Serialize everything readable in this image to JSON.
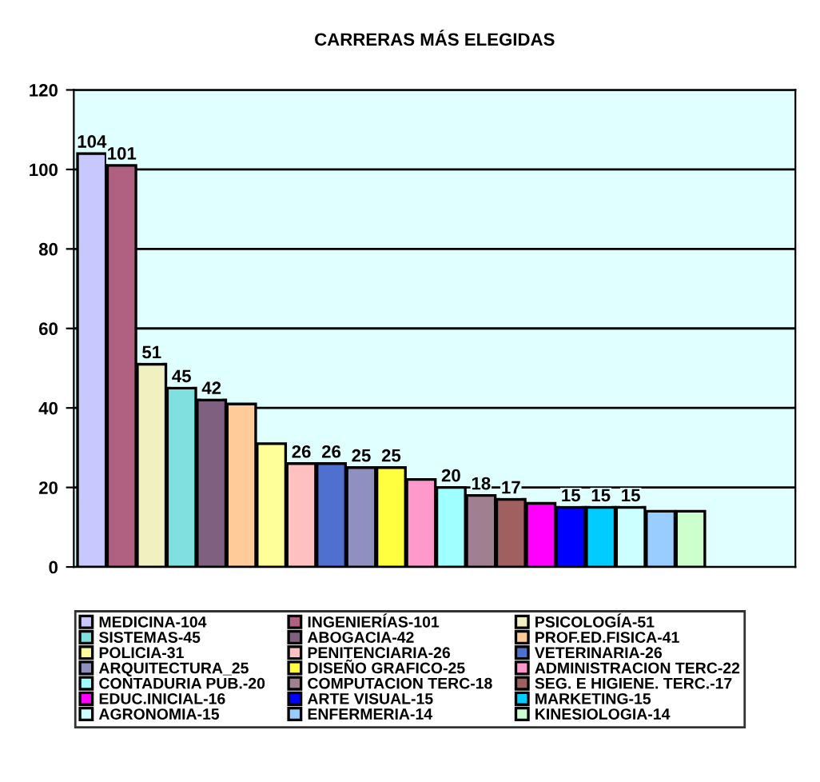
{
  "chart_data": {
    "type": "bar",
    "title": "CARRERAS MÁS ELEGIDAS",
    "categories": [
      null,
      null,
      null,
      null,
      null,
      null,
      null,
      null,
      null,
      null,
      null,
      null,
      null,
      null,
      null,
      null,
      null,
      null,
      null,
      null,
      null
    ],
    "series": [
      {
        "name": "MEDICINA-104",
        "color": "#c8c8ff",
        "values": [
          104,
          null,
          null,
          null,
          null,
          null,
          null,
          null,
          null,
          null,
          null,
          null,
          null,
          null,
          null,
          null,
          null,
          null,
          null,
          null,
          null
        ],
        "value_labels": [
          "104",
          null,
          null,
          null,
          null,
          null,
          null,
          null,
          null,
          null,
          null,
          null,
          null,
          null,
          null,
          null,
          null,
          null,
          null,
          null,
          null
        ]
      },
      {
        "name": "INGENIERÍAS-101",
        "color": "#b06080",
        "values": [
          null,
          101,
          null,
          null,
          null,
          null,
          null,
          null,
          null,
          null,
          null,
          null,
          null,
          null,
          null,
          null,
          null,
          null,
          null,
          null,
          null
        ],
        "value_labels": [
          null,
          "101",
          null,
          null,
          null,
          null,
          null,
          null,
          null,
          null,
          null,
          null,
          null,
          null,
          null,
          null,
          null,
          null,
          null,
          null,
          null
        ]
      },
      {
        "name": "PSICOLOGÍA-51",
        "color": "#f0f0c0",
        "values": [
          null,
          null,
          51,
          null,
          null,
          null,
          null,
          null,
          null,
          null,
          null,
          null,
          null,
          null,
          null,
          null,
          null,
          null,
          null,
          null,
          null
        ],
        "value_labels": [
          null,
          null,
          "51",
          null,
          null,
          null,
          null,
          null,
          null,
          null,
          null,
          null,
          null,
          null,
          null,
          null,
          null,
          null,
          null,
          null,
          null
        ]
      },
      {
        "name": "SISTEMAS-45",
        "color": "#80e0e0",
        "values": [
          null,
          null,
          null,
          45,
          null,
          null,
          null,
          null,
          null,
          null,
          null,
          null,
          null,
          null,
          null,
          null,
          null,
          null,
          null,
          null,
          null
        ],
        "value_labels": [
          null,
          null,
          null,
          "45",
          null,
          null,
          null,
          null,
          null,
          null,
          null,
          null,
          null,
          null,
          null,
          null,
          null,
          null,
          null,
          null,
          null
        ]
      },
      {
        "name": "ABOGACIA-42",
        "color": "#806080",
        "values": [
          null,
          null,
          null,
          null,
          42,
          null,
          null,
          null,
          null,
          null,
          null,
          null,
          null,
          null,
          null,
          null,
          null,
          null,
          null,
          null,
          null
        ],
        "value_labels": [
          null,
          null,
          null,
          null,
          "42",
          null,
          null,
          null,
          null,
          null,
          null,
          null,
          null,
          null,
          null,
          null,
          null,
          null,
          null,
          null,
          null
        ]
      },
      {
        "name": "PROF.ED.FISICA-41",
        "color": "#ffcc99",
        "values": [
          null,
          null,
          null,
          null,
          null,
          41,
          null,
          null,
          null,
          null,
          null,
          null,
          null,
          null,
          null,
          null,
          null,
          null,
          null,
          null,
          null
        ]
      },
      {
        "name": "POLICIA-31",
        "color": "#ffff99",
        "values": [
          null,
          null,
          null,
          null,
          null,
          null,
          31,
          null,
          null,
          null,
          null,
          null,
          null,
          null,
          null,
          null,
          null,
          null,
          null,
          null,
          null
        ]
      },
      {
        "name": "PENITENCIARIA-26",
        "color": "#ffc0c0",
        "values": [
          null,
          null,
          null,
          null,
          null,
          null,
          null,
          26,
          null,
          null,
          null,
          null,
          null,
          null,
          null,
          null,
          null,
          null,
          null,
          null,
          null
        ],
        "value_labels": [
          null,
          null,
          null,
          null,
          null,
          null,
          null,
          "26",
          null,
          null,
          null,
          null,
          null,
          null,
          null,
          null,
          null,
          null,
          null,
          null,
          null
        ]
      },
      {
        "name": "VETERINARIA-26",
        "color": "#5070d0",
        "values": [
          null,
          null,
          null,
          null,
          null,
          null,
          null,
          null,
          26,
          null,
          null,
          null,
          null,
          null,
          null,
          null,
          null,
          null,
          null,
          null,
          null
        ],
        "value_labels": [
          null,
          null,
          null,
          null,
          null,
          null,
          null,
          null,
          "26",
          null,
          null,
          null,
          null,
          null,
          null,
          null,
          null,
          null,
          null,
          null,
          null
        ]
      },
      {
        "name": "ARQUITECTURA_25",
        "color": "#9090c0",
        "values": [
          null,
          null,
          null,
          null,
          null,
          null,
          null,
          null,
          null,
          25,
          null,
          null,
          null,
          null,
          null,
          null,
          null,
          null,
          null,
          null,
          null
        ],
        "value_labels": [
          null,
          null,
          null,
          null,
          null,
          null,
          null,
          null,
          null,
          "25",
          null,
          null,
          null,
          null,
          null,
          null,
          null,
          null,
          null,
          null,
          null
        ]
      },
      {
        "name": "DISEÑO GRAFICO-25",
        "color": "#ffff40",
        "values": [
          null,
          null,
          null,
          null,
          null,
          null,
          null,
          null,
          null,
          null,
          25,
          null,
          null,
          null,
          null,
          null,
          null,
          null,
          null,
          null,
          null
        ],
        "value_labels": [
          null,
          null,
          null,
          null,
          null,
          null,
          null,
          null,
          null,
          null,
          "25",
          null,
          null,
          null,
          null,
          null,
          null,
          null,
          null,
          null,
          null
        ]
      },
      {
        "name": "ADMINISTRACION TERC-22",
        "color": "#ff99cc",
        "values": [
          null,
          null,
          null,
          null,
          null,
          null,
          null,
          null,
          null,
          null,
          null,
          22,
          null,
          null,
          null,
          null,
          null,
          null,
          null,
          null,
          null
        ]
      },
      {
        "name": "CONTADURIA PUB.-20",
        "color": "#a0ffff",
        "values": [
          null,
          null,
          null,
          null,
          null,
          null,
          null,
          null,
          null,
          null,
          null,
          null,
          20,
          null,
          null,
          null,
          null,
          null,
          null,
          null,
          null
        ],
        "value_labels": [
          null,
          null,
          null,
          null,
          null,
          null,
          null,
          null,
          null,
          null,
          null,
          null,
          "20",
          null,
          null,
          null,
          null,
          null,
          null,
          null,
          null
        ]
      },
      {
        "name": "COMPUTACION TERC-18",
        "color": "#a08090",
        "values": [
          null,
          null,
          null,
          null,
          null,
          null,
          null,
          null,
          null,
          null,
          null,
          null,
          null,
          18,
          null,
          null,
          null,
          null,
          null,
          null,
          null
        ],
        "value_labels": [
          null,
          null,
          null,
          null,
          null,
          null,
          null,
          null,
          null,
          null,
          null,
          null,
          null,
          "18",
          null,
          null,
          null,
          null,
          null,
          null,
          null
        ]
      },
      {
        "name": "SEG. E HIGIENE. TERC.-17",
        "color": "#a06060",
        "values": [
          null,
          null,
          null,
          null,
          null,
          null,
          null,
          null,
          null,
          null,
          null,
          null,
          null,
          null,
          17,
          null,
          null,
          null,
          null,
          null,
          null
        ],
        "value_labels": [
          null,
          null,
          null,
          null,
          null,
          null,
          null,
          null,
          null,
          null,
          null,
          null,
          null,
          null,
          "17",
          null,
          null,
          null,
          null,
          null,
          null
        ]
      },
      {
        "name": "EDUC.INICIAL-16",
        "color": "#ff00ff",
        "values": [
          null,
          null,
          null,
          null,
          null,
          null,
          null,
          null,
          null,
          null,
          null,
          null,
          null,
          null,
          null,
          16,
          null,
          null,
          null,
          null,
          null
        ]
      },
      {
        "name": "ARTE VISUAL-15",
        "color": "#0000ff",
        "values": [
          null,
          null,
          null,
          null,
          null,
          null,
          null,
          null,
          null,
          null,
          null,
          null,
          null,
          null,
          null,
          null,
          15,
          null,
          null,
          null,
          null
        ],
        "value_labels": [
          null,
          null,
          null,
          null,
          null,
          null,
          null,
          null,
          null,
          null,
          null,
          null,
          null,
          null,
          null,
          null,
          "15",
          null,
          null,
          null,
          null
        ]
      },
      {
        "name": "MARKETING-15",
        "color": "#00ccff",
        "values": [
          null,
          null,
          null,
          null,
          null,
          null,
          null,
          null,
          null,
          null,
          null,
          null,
          null,
          null,
          null,
          null,
          null,
          15,
          null,
          null,
          null
        ],
        "value_labels": [
          null,
          null,
          null,
          null,
          null,
          null,
          null,
          null,
          null,
          null,
          null,
          null,
          null,
          null,
          null,
          null,
          null,
          "15",
          null,
          null,
          null
        ]
      },
      {
        "name": "AGRONOMIA-15",
        "color": "#ccffff",
        "values": [
          null,
          null,
          null,
          null,
          null,
          null,
          null,
          null,
          null,
          null,
          null,
          null,
          null,
          null,
          null,
          null,
          null,
          null,
          15,
          null,
          null
        ],
        "value_labels": [
          null,
          null,
          null,
          null,
          null,
          null,
          null,
          null,
          null,
          null,
          null,
          null,
          null,
          null,
          null,
          null,
          null,
          null,
          "15",
          null,
          null
        ]
      },
      {
        "name": "ENFERMERIA-14",
        "color": "#99ccff",
        "values": [
          null,
          null,
          null,
          null,
          null,
          null,
          null,
          null,
          null,
          null,
          null,
          null,
          null,
          null,
          null,
          null,
          null,
          null,
          null,
          14,
          null
        ]
      },
      {
        "name": "KINESIOLOGIA-14",
        "color": "#ccffcc",
        "values": [
          null,
          null,
          null,
          null,
          null,
          null,
          null,
          null,
          null,
          null,
          null,
          null,
          null,
          null,
          null,
          null,
          null,
          null,
          null,
          null,
          14
        ]
      }
    ],
    "stacked": true,
    "ylim": [
      0,
      120
    ],
    "yticks": [
      0,
      20,
      40,
      60,
      80,
      100,
      120
    ],
    "grid": "y",
    "legend": "bottom",
    "tick_labels": "y"
  }
}
